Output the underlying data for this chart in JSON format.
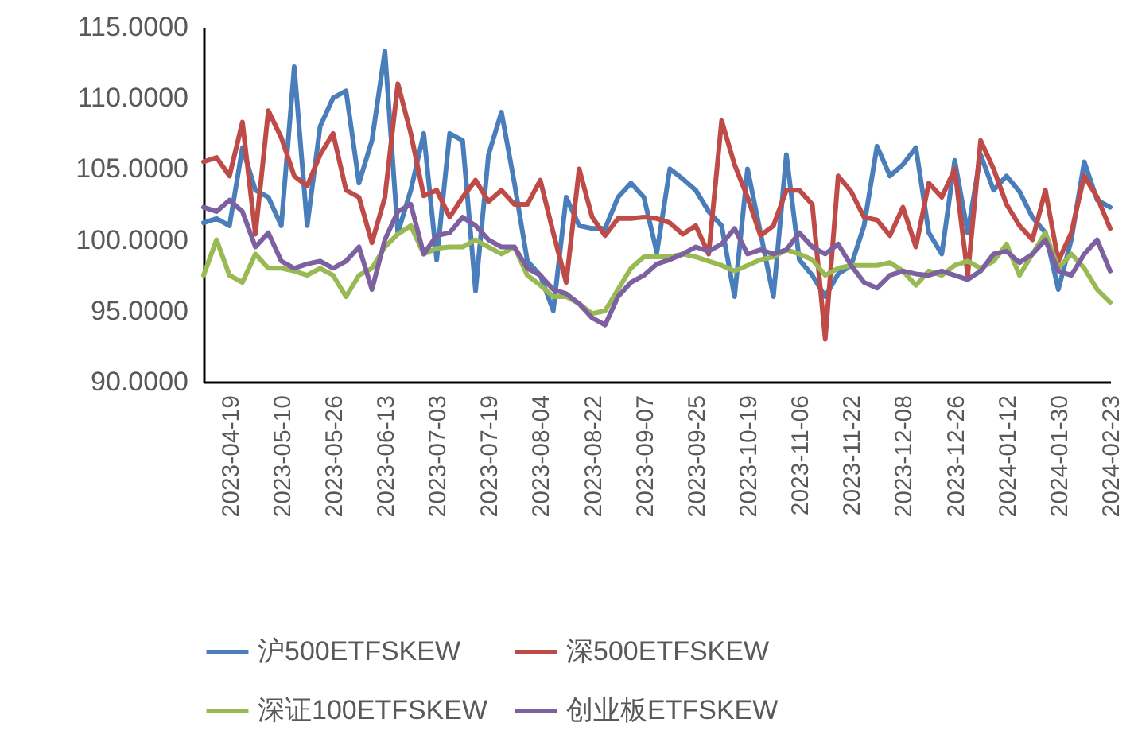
{
  "chart_data": {
    "type": "line",
    "categories": [
      null,
      null,
      "2023-04-19",
      null,
      null,
      null,
      "2023-05-10",
      null,
      null,
      null,
      "2023-05-26",
      null,
      null,
      null,
      "2023-06-13",
      null,
      null,
      null,
      "2023-07-03",
      null,
      null,
      null,
      "2023-07-19",
      null,
      null,
      null,
      "2023-08-04",
      null,
      null,
      null,
      "2023-08-22",
      null,
      null,
      null,
      "2023-09-07",
      null,
      null,
      null,
      "2023-09-25",
      null,
      null,
      null,
      "2023-10-19",
      null,
      null,
      null,
      "2023-11-06",
      null,
      null,
      null,
      "2023-11-22",
      null,
      null,
      null,
      "2023-12-08",
      null,
      null,
      null,
      "2023-12-26",
      null,
      null,
      null,
      "2024-01-12",
      null,
      null,
      null,
      "2024-01-30",
      null,
      null,
      null,
      "2024-02-23"
    ],
    "series": [
      {
        "name": "沪500ETFSKEW",
        "color": "#4a7ebb",
        "values": [
          101.2,
          101.5,
          101.0,
          106.5,
          103.5,
          103.0,
          101.0,
          112.2,
          101.0,
          108.0,
          110.0,
          110.5,
          104.0,
          107.0,
          113.3,
          100.5,
          103.5,
          107.5,
          98.6,
          107.5,
          107.0,
          96.4,
          106.0,
          109.0,
          104.0,
          98.5,
          97.5,
          95.0,
          103.0,
          101.0,
          100.8,
          100.8,
          103.0,
          104.0,
          103.0,
          99.1,
          105.0,
          104.3,
          103.5,
          102.0,
          101.0,
          96.0,
          105.0,
          100.5,
          96.0,
          106.0,
          98.6,
          97.5,
          96.0,
          97.6,
          98.2,
          101.0,
          106.6,
          104.5,
          105.3,
          106.5,
          100.5,
          99.0,
          105.6,
          100.5,
          106.0,
          103.5,
          104.5,
          103.4,
          101.6,
          100.5,
          96.5,
          100.0,
          105.5,
          102.8,
          102.3
        ]
      },
      {
        "name": "深500ETFSKEW",
        "color": "#be4b48",
        "values": [
          105.5,
          105.8,
          104.5,
          108.3,
          100.4,
          109.1,
          107.2,
          104.5,
          103.8,
          106.0,
          107.5,
          103.5,
          103.0,
          99.8,
          103.0,
          111.0,
          107.5,
          103.1,
          103.5,
          101.6,
          103.0,
          104.2,
          102.7,
          103.5,
          102.5,
          102.5,
          104.2,
          100.5,
          97.0,
          105.0,
          101.6,
          100.3,
          101.5,
          101.5,
          101.6,
          101.5,
          101.2,
          100.4,
          101.0,
          99.0,
          108.4,
          105.3,
          103.0,
          100.3,
          101.0,
          103.5,
          103.5,
          102.5,
          93.0,
          104.5,
          103.4,
          101.6,
          101.4,
          100.3,
          102.3,
          99.5,
          104.0,
          103.0,
          105.0,
          97.5,
          107.0,
          105.0,
          102.5,
          101.0,
          100.0,
          103.5,
          98.5,
          100.5,
          104.5,
          103.0,
          100.8
        ]
      },
      {
        "name": "深证100ETFSKEW",
        "color": "#98b954",
        "values": [
          97.5,
          100.0,
          97.5,
          97.0,
          99.0,
          98.0,
          98.0,
          97.8,
          97.5,
          98.0,
          97.5,
          96.0,
          97.5,
          98.0,
          99.5,
          100.4,
          101.0,
          99.0,
          99.4,
          99.5,
          99.5,
          100.0,
          99.5,
          99.0,
          99.5,
          97.5,
          96.8,
          96.0,
          96.0,
          95.5,
          94.8,
          95.0,
          96.5,
          98.0,
          98.8,
          98.8,
          98.8,
          99.0,
          98.8,
          98.5,
          98.2,
          97.8,
          98.2,
          98.6,
          98.8,
          99.3,
          99.0,
          98.6,
          97.5,
          98.0,
          98.2,
          98.2,
          98.2,
          98.4,
          97.8,
          96.8,
          97.8,
          97.5,
          98.2,
          98.5,
          98.0,
          98.5,
          99.7,
          97.5,
          99.0,
          100.5,
          98.0,
          99.0,
          98.0,
          96.5,
          95.6
        ]
      },
      {
        "name": "创业板ETFSKEW",
        "color": "#7d60a0",
        "values": [
          102.3,
          102.0,
          102.8,
          102.0,
          99.5,
          100.5,
          98.5,
          98.0,
          98.3,
          98.5,
          98.0,
          98.5,
          99.5,
          96.5,
          100.0,
          102.0,
          102.5,
          99.0,
          100.3,
          100.5,
          101.6,
          101.0,
          100.0,
          99.5,
          99.5,
          98.0,
          97.5,
          96.5,
          96.2,
          95.5,
          94.5,
          94.0,
          96.0,
          97.0,
          97.5,
          98.3,
          98.6,
          99.0,
          99.5,
          99.2,
          99.7,
          100.8,
          99.0,
          99.3,
          99.0,
          99.3,
          100.5,
          99.5,
          99.0,
          99.7,
          98.2,
          97.0,
          96.6,
          97.5,
          97.8,
          97.6,
          97.5,
          97.8,
          97.5,
          97.2,
          97.8,
          99.0,
          99.2,
          98.4,
          99.0,
          100.0,
          97.8,
          97.5,
          99.0,
          100.0,
          97.8
        ]
      }
    ],
    "ylim": [
      90,
      115
    ],
    "yticks": [
      {
        "value": 90,
        "label": "90.0000"
      },
      {
        "value": 95,
        "label": "95.0000"
      },
      {
        "value": 100,
        "label": "100.0000"
      },
      {
        "value": 105,
        "label": "105.0000"
      },
      {
        "value": 110,
        "label": "110.0000"
      },
      {
        "value": 115,
        "label": "115.0000"
      }
    ],
    "legend": "bottom",
    "grid": false,
    "line_style": "solid",
    "marker": "none"
  }
}
